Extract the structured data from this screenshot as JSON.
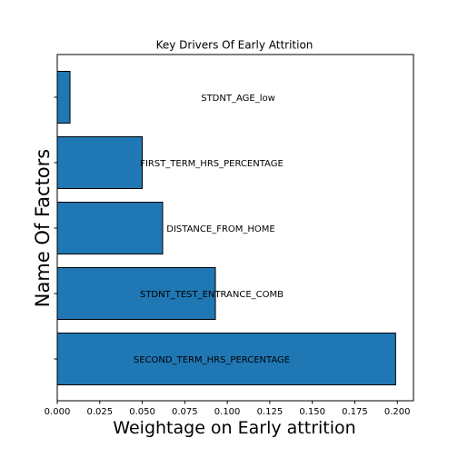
{
  "chart_data": {
    "type": "bar",
    "orientation": "horizontal",
    "title": "Key Drivers Of Early Attrition",
    "xlabel": "Weightage on Early attrition",
    "ylabel": "Name Of Factors",
    "xlim": [
      0.0,
      0.2095
    ],
    "xticks": [
      "0.000",
      "0.025",
      "0.050",
      "0.075",
      "0.100",
      "0.125",
      "0.150",
      "0.175",
      "0.200"
    ],
    "categories": [
      "SECOND_TERM_HRS_PERCENTAGE",
      "STDNT_TEST_ENTRANCE_COMB",
      "DISTANCE_FROM_HOME",
      "FIRST_TERM_HRS_PERCENTAGE",
      "STDNT_AGE_low"
    ],
    "values": [
      0.199,
      0.093,
      0.062,
      0.05,
      0.0075
    ],
    "bar_color": "#1f77b4",
    "bar_edge_color": "#000000",
    "grid": false,
    "legend": "none"
  }
}
